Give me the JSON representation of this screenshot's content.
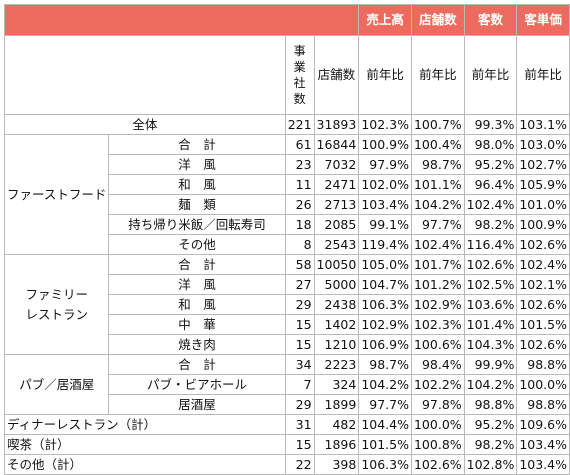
{
  "header": {
    "sales": "売上高",
    "stores": "店舗数",
    "customers": "客数",
    "unit_price": "客単価",
    "companies": [
      "事",
      "業",
      "社",
      "数"
    ],
    "store_count": "店舗数",
    "yoy": "前年比"
  },
  "rows": [
    {
      "label": "全体",
      "companies": "221",
      "stores": "31893",
      "sales": "102.3%",
      "store_yoy": "100.7%",
      "cust": "99.3%",
      "price": "103.1%"
    },
    {
      "label": "合　計",
      "companies": "61",
      "stores": "16844",
      "sales": "100.9%",
      "store_yoy": "100.4%",
      "cust": "98.0%",
      "price": "103.0%"
    },
    {
      "label": "洋　風",
      "companies": "23",
      "stores": "7032",
      "sales": "97.9%",
      "store_yoy": "98.7%",
      "cust": "95.2%",
      "price": "102.7%"
    },
    {
      "label": "和　風",
      "companies": "11",
      "stores": "2471",
      "sales": "102.0%",
      "store_yoy": "101.1%",
      "cust": "96.4%",
      "price": "105.9%"
    },
    {
      "label": "麺　類",
      "companies": "26",
      "stores": "2713",
      "sales": "103.4%",
      "store_yoy": "104.2%",
      "cust": "102.4%",
      "price": "101.0%"
    },
    {
      "label": "持ち帰り米飯／回転寿司",
      "companies": "18",
      "stores": "2085",
      "sales": "99.1%",
      "store_yoy": "97.7%",
      "cust": "98.2%",
      "price": "100.9%"
    },
    {
      "label": "その他",
      "companies": "8",
      "stores": "2543",
      "sales": "119.4%",
      "store_yoy": "102.4%",
      "cust": "116.4%",
      "price": "102.6%"
    },
    {
      "label": "合　計",
      "companies": "58",
      "stores": "10050",
      "sales": "105.0%",
      "store_yoy": "101.7%",
      "cust": "102.6%",
      "price": "102.4%"
    },
    {
      "label": "洋　風",
      "companies": "27",
      "stores": "5000",
      "sales": "104.7%",
      "store_yoy": "101.2%",
      "cust": "102.5%",
      "price": "102.1%"
    },
    {
      "label": "和　風",
      "companies": "29",
      "stores": "2438",
      "sales": "106.3%",
      "store_yoy": "102.9%",
      "cust": "103.6%",
      "price": "102.6%"
    },
    {
      "label": "中　華",
      "companies": "15",
      "stores": "1402",
      "sales": "102.9%",
      "store_yoy": "102.3%",
      "cust": "101.4%",
      "price": "101.5%"
    },
    {
      "label": "焼き肉",
      "companies": "15",
      "stores": "1210",
      "sales": "106.9%",
      "store_yoy": "100.6%",
      "cust": "104.3%",
      "price": "102.6%"
    },
    {
      "label": "合　計",
      "companies": "34",
      "stores": "2223",
      "sales": "98.7%",
      "store_yoy": "98.4%",
      "cust": "99.9%",
      "price": "98.8%"
    },
    {
      "label": "パブ・ビアホール",
      "companies": "7",
      "stores": "324",
      "sales": "104.2%",
      "store_yoy": "102.2%",
      "cust": "104.2%",
      "price": "100.0%"
    },
    {
      "label": "居酒屋",
      "companies": "29",
      "stores": "1899",
      "sales": "97.7%",
      "store_yoy": "97.8%",
      "cust": "98.8%",
      "price": "98.8%"
    },
    {
      "label": "ディナーレストラン（計）",
      "companies": "31",
      "stores": "482",
      "sales": "104.4%",
      "store_yoy": "100.0%",
      "cust": "95.2%",
      "price": "109.6%"
    },
    {
      "label": "喫茶（計）",
      "companies": "15",
      "stores": "1896",
      "sales": "101.5%",
      "store_yoy": "100.8%",
      "cust": "98.2%",
      "price": "103.4%"
    },
    {
      "label": "その他（計）",
      "companies": "22",
      "stores": "398",
      "sales": "106.3%",
      "store_yoy": "102.6%",
      "cust": "102.8%",
      "price": "103.4%"
    }
  ],
  "groups": {
    "fast_food": "ファーストフード",
    "family_1": "ファミリー",
    "family_2": "レストラン",
    "pub": "パブ／居酒屋"
  },
  "colors": {
    "header_bg": "#ec6b5e",
    "header_text": "#ffffff",
    "border": "#b9b9b9"
  }
}
